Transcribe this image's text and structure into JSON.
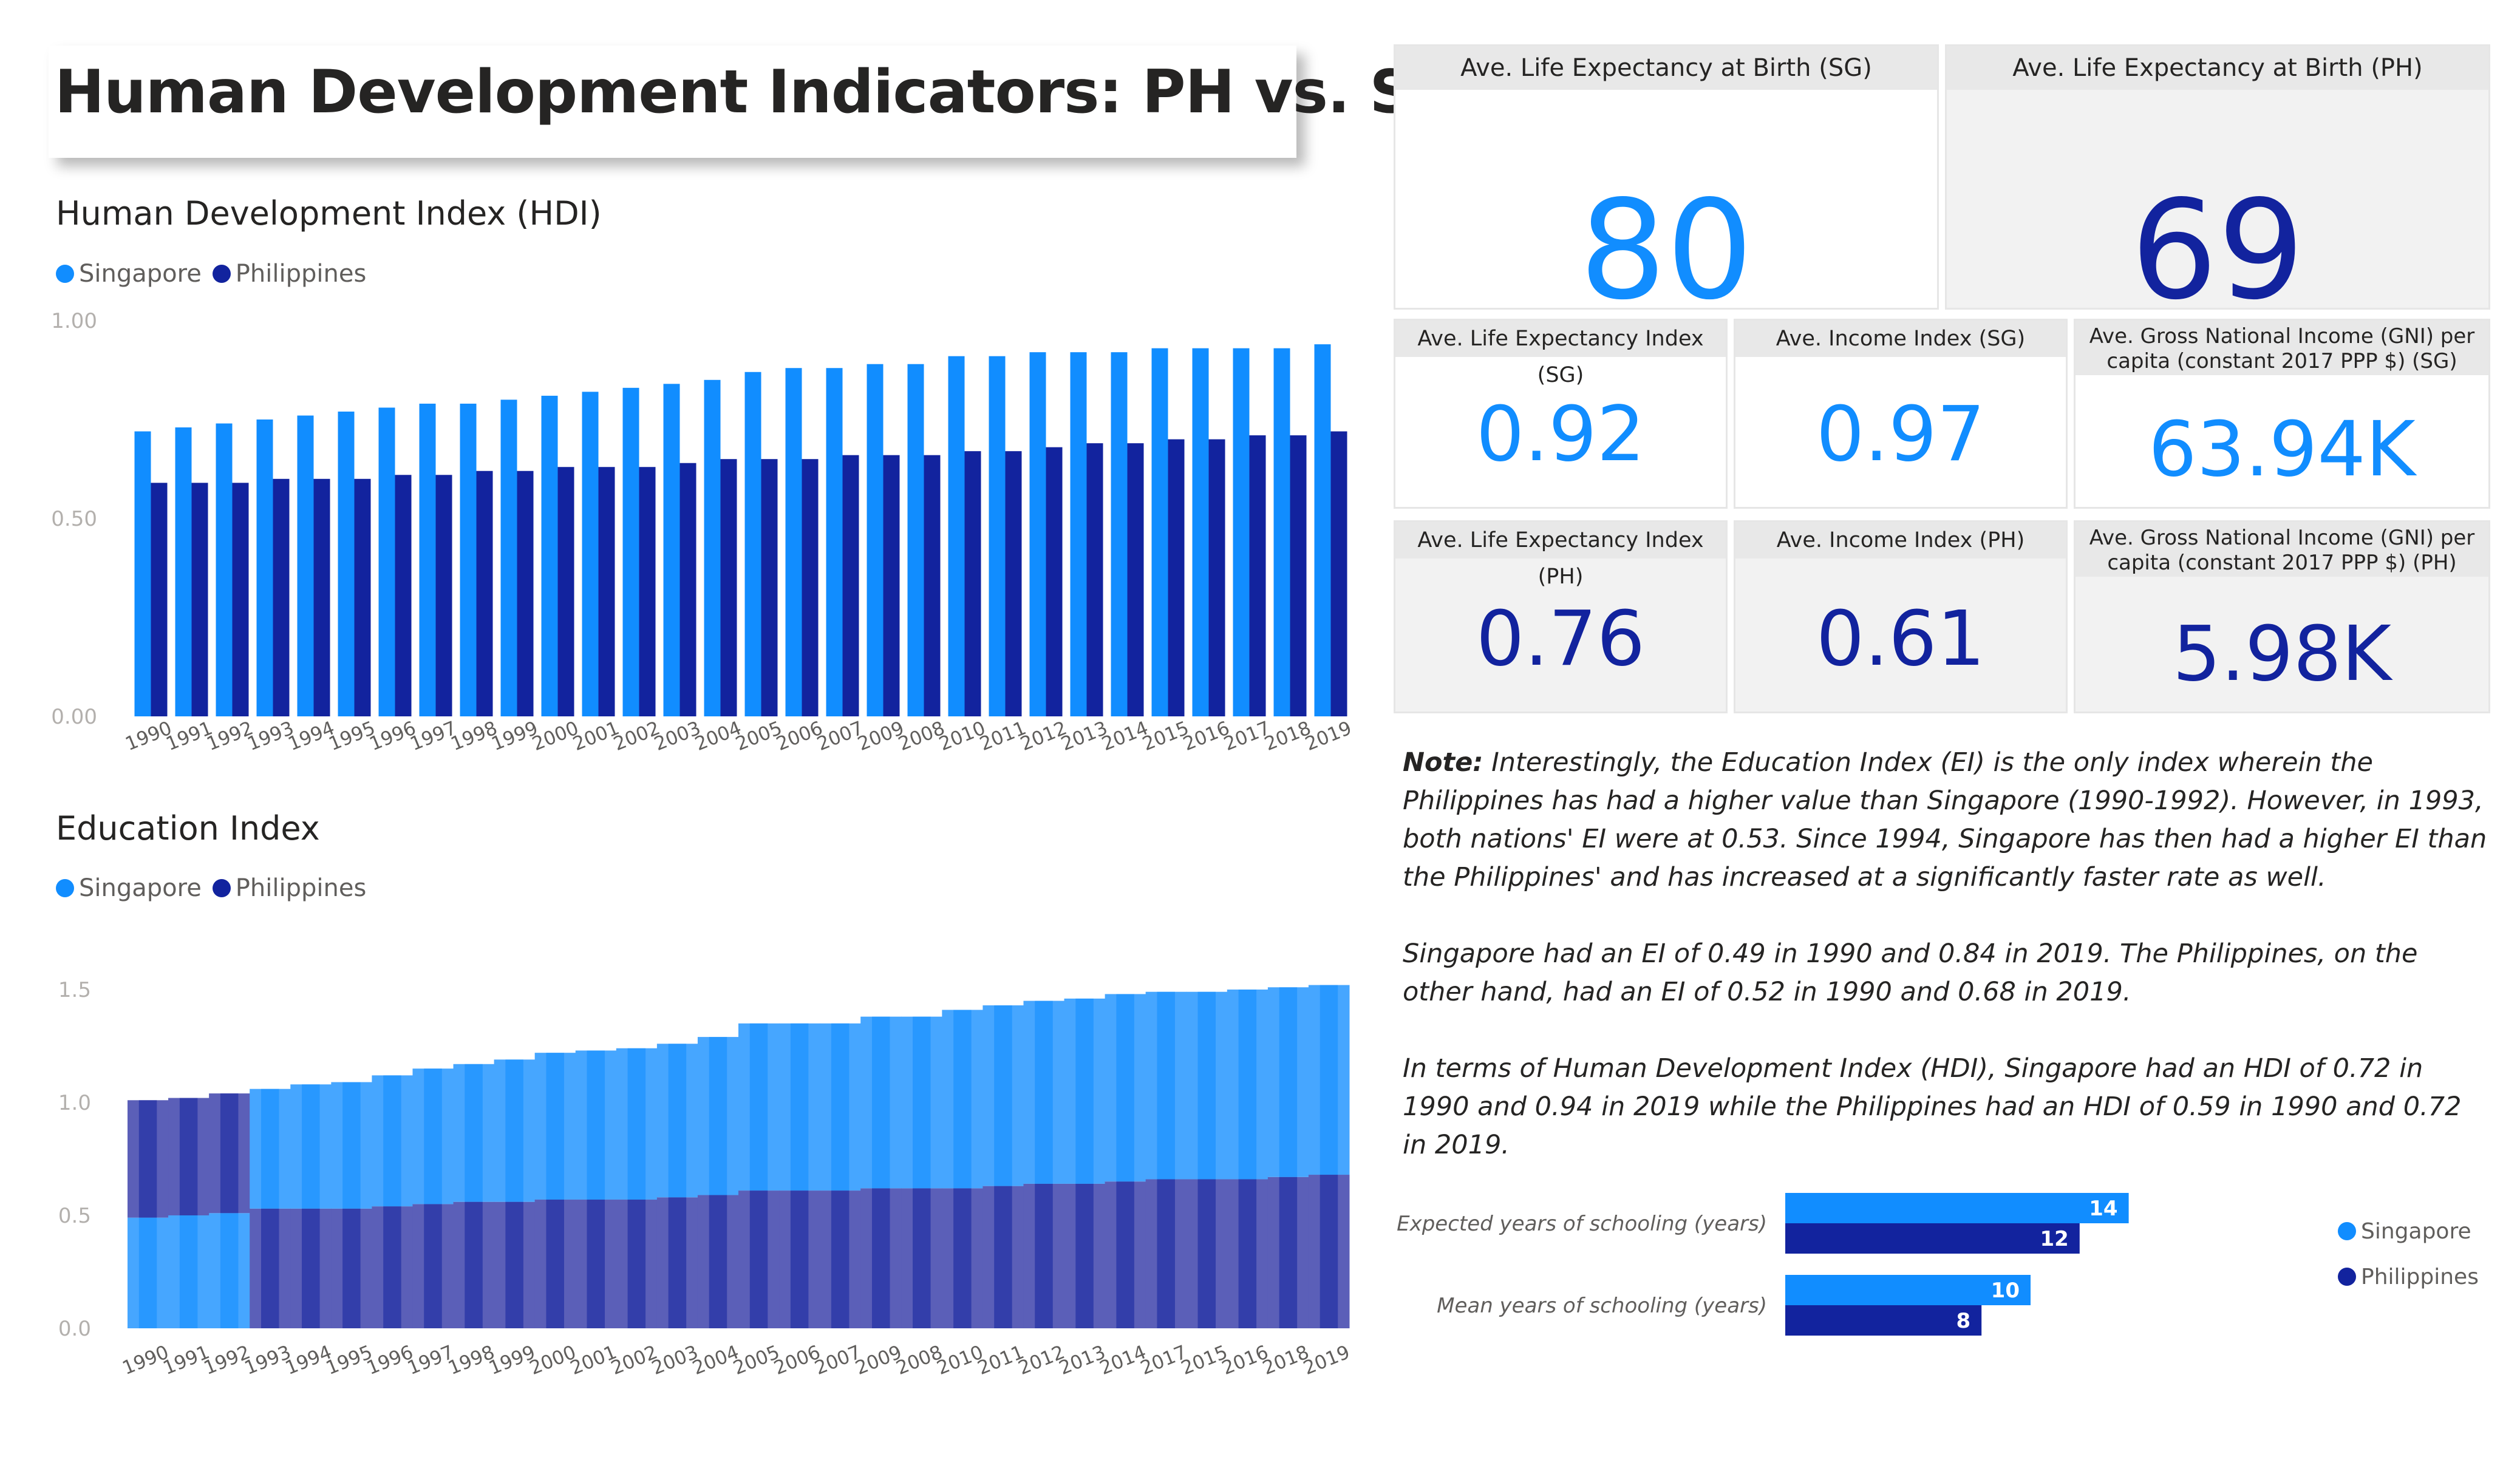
{
  "title": "Human Development Indicators: PH vs. SG",
  "colors": {
    "singapore": "#118DFF",
    "philippines": "#12239E",
    "ph_band": "#5B5FB8",
    "sg_band": "#46A6FF"
  },
  "hdi_chart": {
    "title": "Human Development Index (HDI)",
    "legend": [
      "Singapore",
      "Philippines"
    ]
  },
  "edu_chart": {
    "title": "Education Index",
    "legend": [
      "Singapore",
      "Philippines"
    ]
  },
  "chart_data": [
    {
      "type": "bar",
      "title": "Human Development Index (HDI)",
      "categories": [
        "1990",
        "1991",
        "1992",
        "1993",
        "1994",
        "1995",
        "1996",
        "1997",
        "1998",
        "1999",
        "2000",
        "2001",
        "2002",
        "2003",
        "2004",
        "2005",
        "2006",
        "2007",
        "2009",
        "2008",
        "2010",
        "2011",
        "2012",
        "2013",
        "2014",
        "2015",
        "2016",
        "2017",
        "2018",
        "2019"
      ],
      "yticks": [
        "0.00",
        "0.50",
        "1.00"
      ],
      "ylim": [
        0,
        1
      ],
      "series": [
        {
          "name": "Singapore",
          "values": [
            0.72,
            0.73,
            0.74,
            0.75,
            0.76,
            0.77,
            0.78,
            0.79,
            0.79,
            0.8,
            0.81,
            0.82,
            0.83,
            0.84,
            0.85,
            0.87,
            0.88,
            0.88,
            0.89,
            0.89,
            0.91,
            0.91,
            0.92,
            0.92,
            0.92,
            0.93,
            0.93,
            0.93,
            0.93,
            0.94
          ]
        },
        {
          "name": "Philippines",
          "values": [
            0.59,
            0.59,
            0.59,
            0.6,
            0.6,
            0.6,
            0.61,
            0.61,
            0.62,
            0.62,
            0.63,
            0.63,
            0.63,
            0.64,
            0.65,
            0.65,
            0.65,
            0.66,
            0.66,
            0.66,
            0.67,
            0.67,
            0.68,
            0.69,
            0.69,
            0.7,
            0.7,
            0.71,
            0.71,
            0.72
          ]
        }
      ],
      "legend": "top-left",
      "grid": false
    },
    {
      "type": "area",
      "title": "Education Index",
      "stacked": true,
      "categories": [
        "1990",
        "1991",
        "1992",
        "1993",
        "1994",
        "1995",
        "1996",
        "1997",
        "1998",
        "1999",
        "2000",
        "2001",
        "2002",
        "2003",
        "2004",
        "2005",
        "2006",
        "2007",
        "2009",
        "2008",
        "2010",
        "2011",
        "2012",
        "2013",
        "2014",
        "2017",
        "2015",
        "2016",
        "2018",
        "2019"
      ],
      "yticks": [
        "0.0",
        "0.5",
        "1.0",
        "1.5"
      ],
      "ylim": [
        0,
        1.5
      ],
      "series": [
        {
          "name": "Singapore",
          "values": [
            0.49,
            0.5,
            0.51,
            0.53,
            0.55,
            0.56,
            0.58,
            0.6,
            0.61,
            0.63,
            0.65,
            0.66,
            0.67,
            0.68,
            0.7,
            0.74,
            0.74,
            0.74,
            0.76,
            0.76,
            0.79,
            0.8,
            0.81,
            0.82,
            0.83,
            0.83,
            0.83,
            0.84,
            0.84,
            0.84
          ]
        },
        {
          "name": "Philippines",
          "values": [
            0.52,
            0.52,
            0.53,
            0.53,
            0.53,
            0.53,
            0.54,
            0.55,
            0.56,
            0.56,
            0.57,
            0.57,
            0.57,
            0.58,
            0.59,
            0.61,
            0.61,
            0.61,
            0.62,
            0.62,
            0.62,
            0.63,
            0.64,
            0.64,
            0.65,
            0.66,
            0.66,
            0.66,
            0.67,
            0.68
          ]
        }
      ],
      "legend": "top-left",
      "grid": false
    },
    {
      "type": "bar",
      "orientation": "horizontal",
      "categories": [
        "Expected years of schooling (years)",
        "Mean years of schooling (years)"
      ],
      "series": [
        {
          "name": "Singapore",
          "values": [
            14,
            10
          ]
        },
        {
          "name": "Philippines",
          "values": [
            12,
            8
          ]
        }
      ],
      "legend": "right"
    }
  ],
  "kpis": {
    "le_birth_sg": {
      "label": "Ave. Life Expectancy at Birth (SG)",
      "value": "80"
    },
    "le_birth_ph": {
      "label": "Ave. Life Expectancy at Birth (PH)",
      "value": "69"
    },
    "le_index_sg": {
      "label": "Ave. Life Expectancy Index (SG)",
      "value": "0.92"
    },
    "income_index_sg": {
      "label": "Ave. Income Index (SG)",
      "value": "0.97"
    },
    "gni_sg": {
      "label": "Ave. Gross National Income (GNI) per capita (constant 2017 PPP $) (SG)",
      "value": "63.94K"
    },
    "le_index_ph": {
      "label": "Ave. Life Expectancy Index (PH)",
      "value": "0.76"
    },
    "income_index_ph": {
      "label": "Ave. Income Index (PH)",
      "value": "0.61"
    },
    "gni_ph": {
      "label": "Ave. Gross National Income (GNI) per capita (constant 2017 PPP $) (PH)",
      "value": "5.98K"
    }
  },
  "note": {
    "label": "Note:",
    "p1": "Interestingly, the Education Index (EI) is the only index wherein the Philippines has had a higher value than Singapore (1990-1992). However, in 1993, both nations' EI were at 0.53. Since 1994, Singapore has then had a higher EI than the Philippines' and has increased at a significantly faster rate as well.",
    "p2": "Singapore had an EI of 0.49 in 1990 and 0.84 in 2019. The Philippines, on the other hand, had an EI of 0.52 in 1990 and 0.68 in 2019.",
    "p3": "In terms of Human Development Index (HDI), Singapore had an HDI of 0.72 in 1990 and 0.94 in 2019 while the Philippines had an HDI of 0.59 in 1990 and 0.72 in 2019."
  }
}
